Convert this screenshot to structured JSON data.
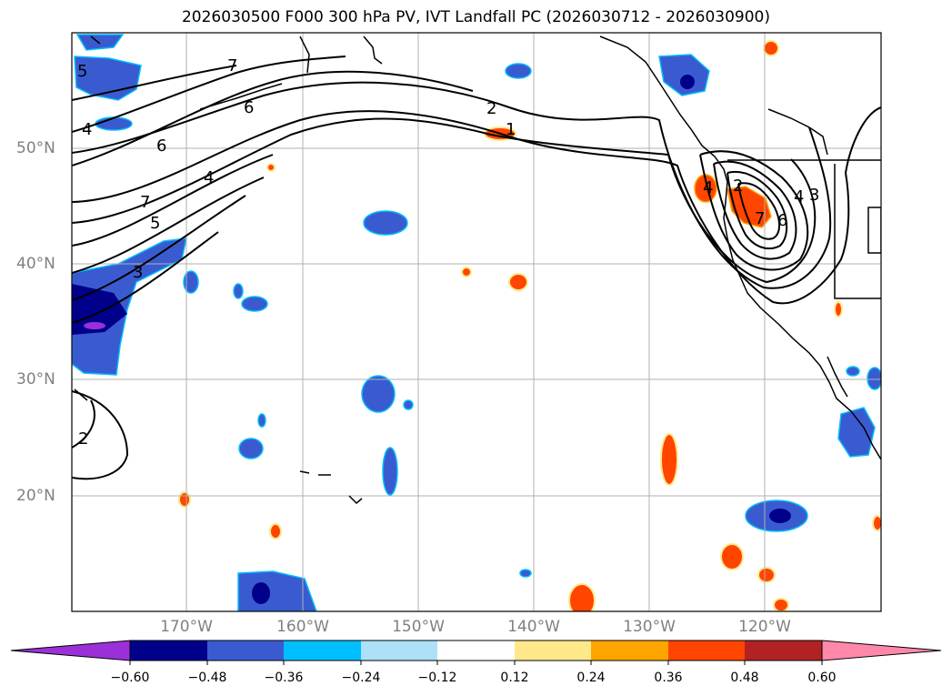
{
  "title": "2026030500 F000 300 hPa PV, IVT Landfall PC (2026030712 - 2026030900)",
  "lat_labels": [
    "50°N",
    "40°N",
    "30°N",
    "20°N"
  ],
  "lon_labels": [
    "170°W",
    "160°W",
    "150°W",
    "140°W",
    "130°W",
    "120°W"
  ],
  "contour_labels": [
    "7",
    "6",
    "5",
    "4",
    "6",
    "7",
    "4",
    "5",
    "3",
    "2",
    "2",
    "1",
    "7",
    "6",
    "4",
    "3",
    "4",
    "2"
  ],
  "colorbar": {
    "ticks": [
      "−0.60",
      "−0.48",
      "−0.36",
      "−0.24",
      "−0.12",
      "0.12",
      "0.24",
      "0.36",
      "0.48",
      "0.60"
    ],
    "colors": [
      "#9b30d8",
      "#00008b",
      "#3a5bd0",
      "#00bfff",
      "#aee0f8",
      "#ffffff",
      "#ffe88a",
      "#ffa500",
      "#ff4500",
      "#b22222",
      "#ff88aa"
    ]
  }
}
